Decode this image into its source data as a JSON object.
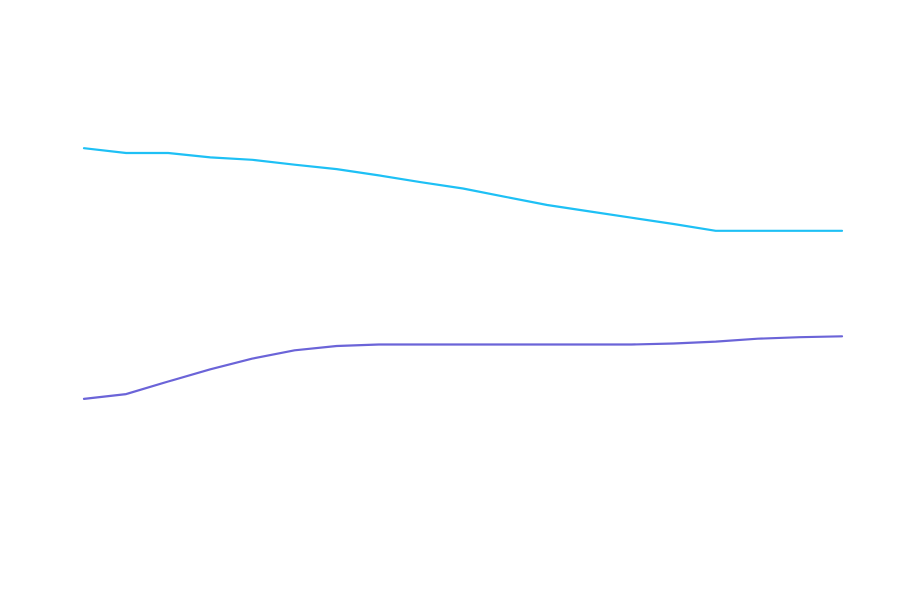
{
  "chart_data": {
    "type": "line",
    "title": "",
    "xlabel": "",
    "ylabel": "",
    "grid": false,
    "x": [
      0,
      1,
      2,
      3,
      4,
      5,
      6,
      7,
      8,
      9,
      10,
      11,
      12,
      13,
      14,
      15,
      16,
      17,
      18
    ],
    "xlim": [
      0,
      18
    ],
    "ylim": [
      0,
      100
    ],
    "series": [
      {
        "color": "#1ec0f5",
        "values": [
          79.8,
          78.8,
          78.8,
          77.9,
          77.4,
          76.4,
          75.5,
          74.2,
          72.8,
          71.5,
          69.8,
          68.1,
          66.8,
          65.5,
          64.2,
          62.8,
          62.8,
          62.8,
          62.8
        ]
      },
      {
        "color": "#6b64d8",
        "values": [
          28.2,
          29.2,
          31.8,
          34.3,
          36.5,
          38.2,
          39.1,
          39.4,
          39.4,
          39.4,
          39.4,
          39.4,
          39.4,
          39.4,
          39.6,
          40.0,
          40.6,
          40.9,
          41.1
        ]
      }
    ]
  }
}
